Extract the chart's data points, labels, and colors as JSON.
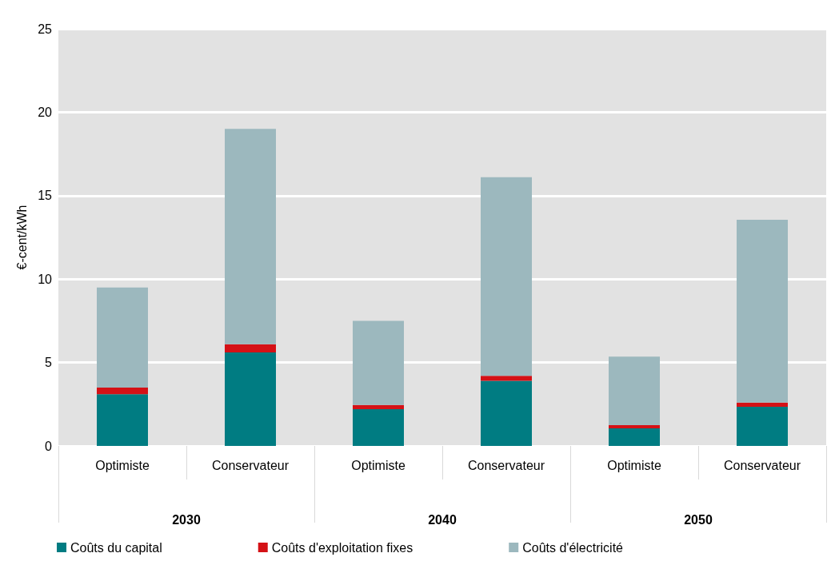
{
  "chart_data": {
    "type": "bar",
    "stacked": true,
    "ylabel": "€-cent/kWh",
    "categories": [
      "Optimiste",
      "Conservateur",
      "Optimiste",
      "Conservateur",
      "Optimiste",
      "Conservateur"
    ],
    "annotations": [
      "2030",
      "2040",
      "2050"
    ],
    "series": [
      {
        "name": "Coûts du capital",
        "color": "#007c82",
        "values": [
          3.1,
          5.6,
          2.2,
          3.9,
          1.05,
          2.35
        ]
      },
      {
        "name": "Coûts d'exploitation fixes",
        "color": "#d41116",
        "values": [
          0.4,
          0.5,
          0.25,
          0.3,
          0.2,
          0.25
        ]
      },
      {
        "name": "Coûts d'électricité",
        "color": "#9cb8be",
        "values": [
          6.0,
          12.9,
          5.05,
          11.9,
          4.1,
          10.95
        ]
      }
    ],
    "ylim": [
      0,
      25
    ],
    "yticks": [
      0,
      5,
      10,
      15,
      20,
      25
    ],
    "grid": "y",
    "legend": "bottom left"
  }
}
